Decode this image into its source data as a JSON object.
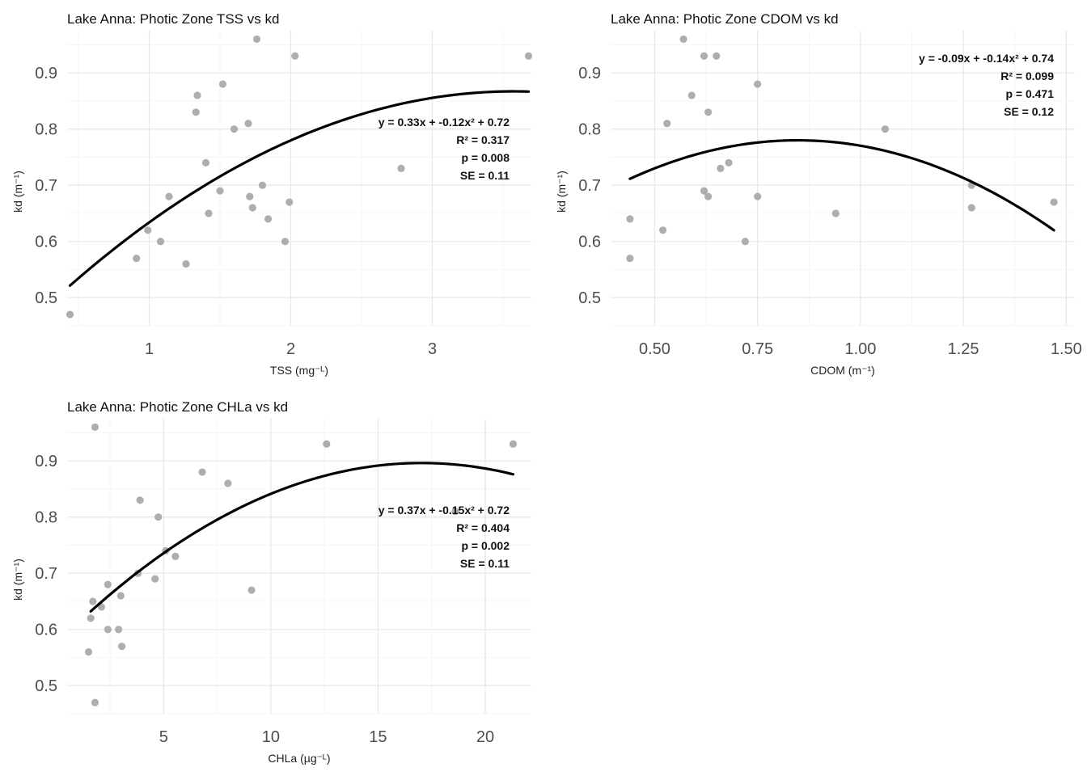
{
  "chart_data": [
    {
      "type": "scatter",
      "title": "Lake Anna: Photic Zone TSS vs kd",
      "xlabel": "TSS (mg⁻ᴸ)",
      "ylabel": "kd (m⁻¹)",
      "xlim": [
        0.42,
        3.7
      ],
      "ylim": [
        0.45,
        0.975
      ],
      "xticks": [
        1,
        2,
        3
      ],
      "xtick_labels": [
        "1",
        "2",
        "3"
      ],
      "yticks": [
        0.5,
        0.6,
        0.7,
        0.8,
        0.9
      ],
      "ytick_labels": [
        "0.5",
        "0.6",
        "0.7",
        "0.8",
        "0.9"
      ],
      "grid": true,
      "points": [
        [
          0.44,
          0.47
        ],
        [
          0.91,
          0.57
        ],
        [
          0.99,
          0.62
        ],
        [
          1.08,
          0.6
        ],
        [
          1.14,
          0.68
        ],
        [
          1.26,
          0.56
        ],
        [
          1.33,
          0.83
        ],
        [
          1.34,
          0.86
        ],
        [
          1.4,
          0.74
        ],
        [
          1.42,
          0.65
        ],
        [
          1.5,
          0.69
        ],
        [
          1.52,
          0.88
        ],
        [
          1.6,
          0.8
        ],
        [
          1.7,
          0.81
        ],
        [
          1.71,
          0.68
        ],
        [
          1.73,
          0.66
        ],
        [
          1.76,
          0.96
        ],
        [
          1.8,
          0.7
        ],
        [
          1.84,
          0.64
        ],
        [
          1.96,
          0.6
        ],
        [
          1.99,
          0.67
        ],
        [
          2.03,
          0.93
        ],
        [
          2.78,
          0.73
        ],
        [
          3.68,
          0.93
        ]
      ],
      "fit": {
        "type": "quadratic",
        "x_range": [
          0.44,
          3.68
        ]
      },
      "annotation": [
        "y = 0.33x + -0.12x² + 0.72",
        "R² = 0.317",
        "p = 0.008",
        "SE = 0.11"
      ]
    },
    {
      "type": "scatter",
      "title": "Lake Anna: Photic Zone CDOM vs kd",
      "xlabel": "CDOM (m⁻¹)",
      "ylabel": "kd (m⁻¹)",
      "xlim": [
        0.393,
        1.521
      ],
      "ylim": [
        0.45,
        0.975
      ],
      "xticks": [
        0.5,
        0.75,
        1.0,
        1.25,
        1.5
      ],
      "xtick_labels": [
        "0.50",
        "0.75",
        "1.00",
        "1.25",
        "1.50"
      ],
      "yticks": [
        0.5,
        0.6,
        0.7,
        0.8,
        0.9
      ],
      "ytick_labels": [
        "0.5",
        "0.6",
        "0.7",
        "0.8",
        "0.9"
      ],
      "grid": true,
      "points": [
        [
          0.44,
          0.64
        ],
        [
          0.44,
          0.57
        ],
        [
          0.52,
          0.62
        ],
        [
          0.53,
          0.81
        ],
        [
          0.57,
          0.96
        ],
        [
          0.59,
          0.86
        ],
        [
          0.62,
          0.93
        ],
        [
          0.62,
          0.69
        ],
        [
          0.63,
          0.83
        ],
        [
          0.63,
          0.68
        ],
        [
          0.65,
          0.93
        ],
        [
          0.66,
          0.73
        ],
        [
          0.68,
          0.74
        ],
        [
          0.72,
          0.6
        ],
        [
          0.75,
          0.88
        ],
        [
          0.75,
          0.68
        ],
        [
          0.94,
          0.65
        ],
        [
          1.06,
          0.8
        ],
        [
          1.27,
          0.7
        ],
        [
          1.27,
          0.66
        ],
        [
          1.47,
          0.67
        ]
      ],
      "fit": {
        "type": "quadratic",
        "x_range": [
          0.44,
          1.47
        ]
      },
      "annotation": [
        "y = -0.09x + -0.14x² + 0.74",
        "R² = 0.099",
        "p = 0.471",
        "SE = 0.12"
      ]
    },
    {
      "type": "scatter",
      "title": "Lake Anna: Photic Zone CHLa vs kd",
      "xlabel": "CHLa (µg⁻ᴸ)",
      "ylabel": "kd (m⁻¹)",
      "xlim": [
        0.5,
        22.15
      ],
      "ylim": [
        0.45,
        0.975
      ],
      "xticks": [
        5,
        10,
        15,
        20
      ],
      "xtick_labels": [
        "5",
        "10",
        "15",
        "20"
      ],
      "yticks": [
        0.5,
        0.6,
        0.7,
        0.8,
        0.9
      ],
      "ytick_labels": [
        "0.5",
        "0.6",
        "0.7",
        "0.8",
        "0.9"
      ],
      "grid": true,
      "points": [
        [
          1.5,
          0.56
        ],
        [
          1.6,
          0.62
        ],
        [
          1.7,
          0.65
        ],
        [
          1.8,
          0.47
        ],
        [
          1.8,
          0.96
        ],
        [
          2.1,
          0.64
        ],
        [
          2.4,
          0.68
        ],
        [
          2.4,
          0.6
        ],
        [
          2.9,
          0.6
        ],
        [
          3.0,
          0.66
        ],
        [
          3.05,
          0.57
        ],
        [
          3.8,
          0.7
        ],
        [
          3.9,
          0.83
        ],
        [
          4.6,
          0.69
        ],
        [
          4.75,
          0.8
        ],
        [
          5.1,
          0.74
        ],
        [
          5.55,
          0.73
        ],
        [
          6.8,
          0.88
        ],
        [
          8.0,
          0.86
        ],
        [
          9.1,
          0.67
        ],
        [
          12.6,
          0.93
        ],
        [
          18.6,
          0.81
        ],
        [
          21.3,
          0.93
        ]
      ],
      "fit": {
        "type": "quadratic",
        "x_range": [
          1.6,
          21.3
        ]
      },
      "annotation": [
        "y = 0.37x + -0.15x² + 0.72",
        "R² = 0.404",
        "p = 0.002",
        "SE = 0.11"
      ]
    }
  ]
}
